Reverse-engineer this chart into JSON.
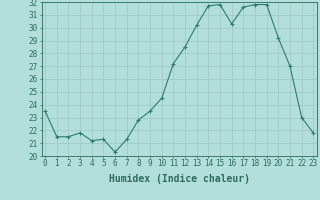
{
  "x": [
    0,
    1,
    2,
    3,
    4,
    5,
    6,
    7,
    8,
    9,
    10,
    11,
    12,
    13,
    14,
    15,
    16,
    17,
    18,
    19,
    20,
    21,
    22,
    23
  ],
  "y": [
    23.5,
    21.5,
    21.5,
    21.8,
    21.2,
    21.3,
    20.3,
    21.3,
    22.8,
    23.5,
    24.5,
    27.2,
    28.5,
    30.2,
    31.7,
    31.8,
    30.3,
    31.6,
    31.8,
    31.8,
    29.2,
    27.0,
    23.0,
    21.8
  ],
  "line_color": "#2d7d6e",
  "marker": "+",
  "marker_size": 3,
  "bg_color": "#b2dfdb",
  "grid_color": "#a0c8c4",
  "xlabel": "Humidex (Indice chaleur)",
  "ylim": [
    20,
    32
  ],
  "xlim": [
    -0.3,
    23.3
  ],
  "yticks": [
    20,
    21,
    22,
    23,
    24,
    25,
    26,
    27,
    28,
    29,
    30,
    31,
    32
  ],
  "xticks": [
    0,
    1,
    2,
    3,
    4,
    5,
    6,
    7,
    8,
    9,
    10,
    11,
    12,
    13,
    14,
    15,
    16,
    17,
    18,
    19,
    20,
    21,
    22,
    23
  ],
  "tick_color": "#2d6b5e",
  "label_fontsize": 7,
  "tick_fontsize": 5.5
}
